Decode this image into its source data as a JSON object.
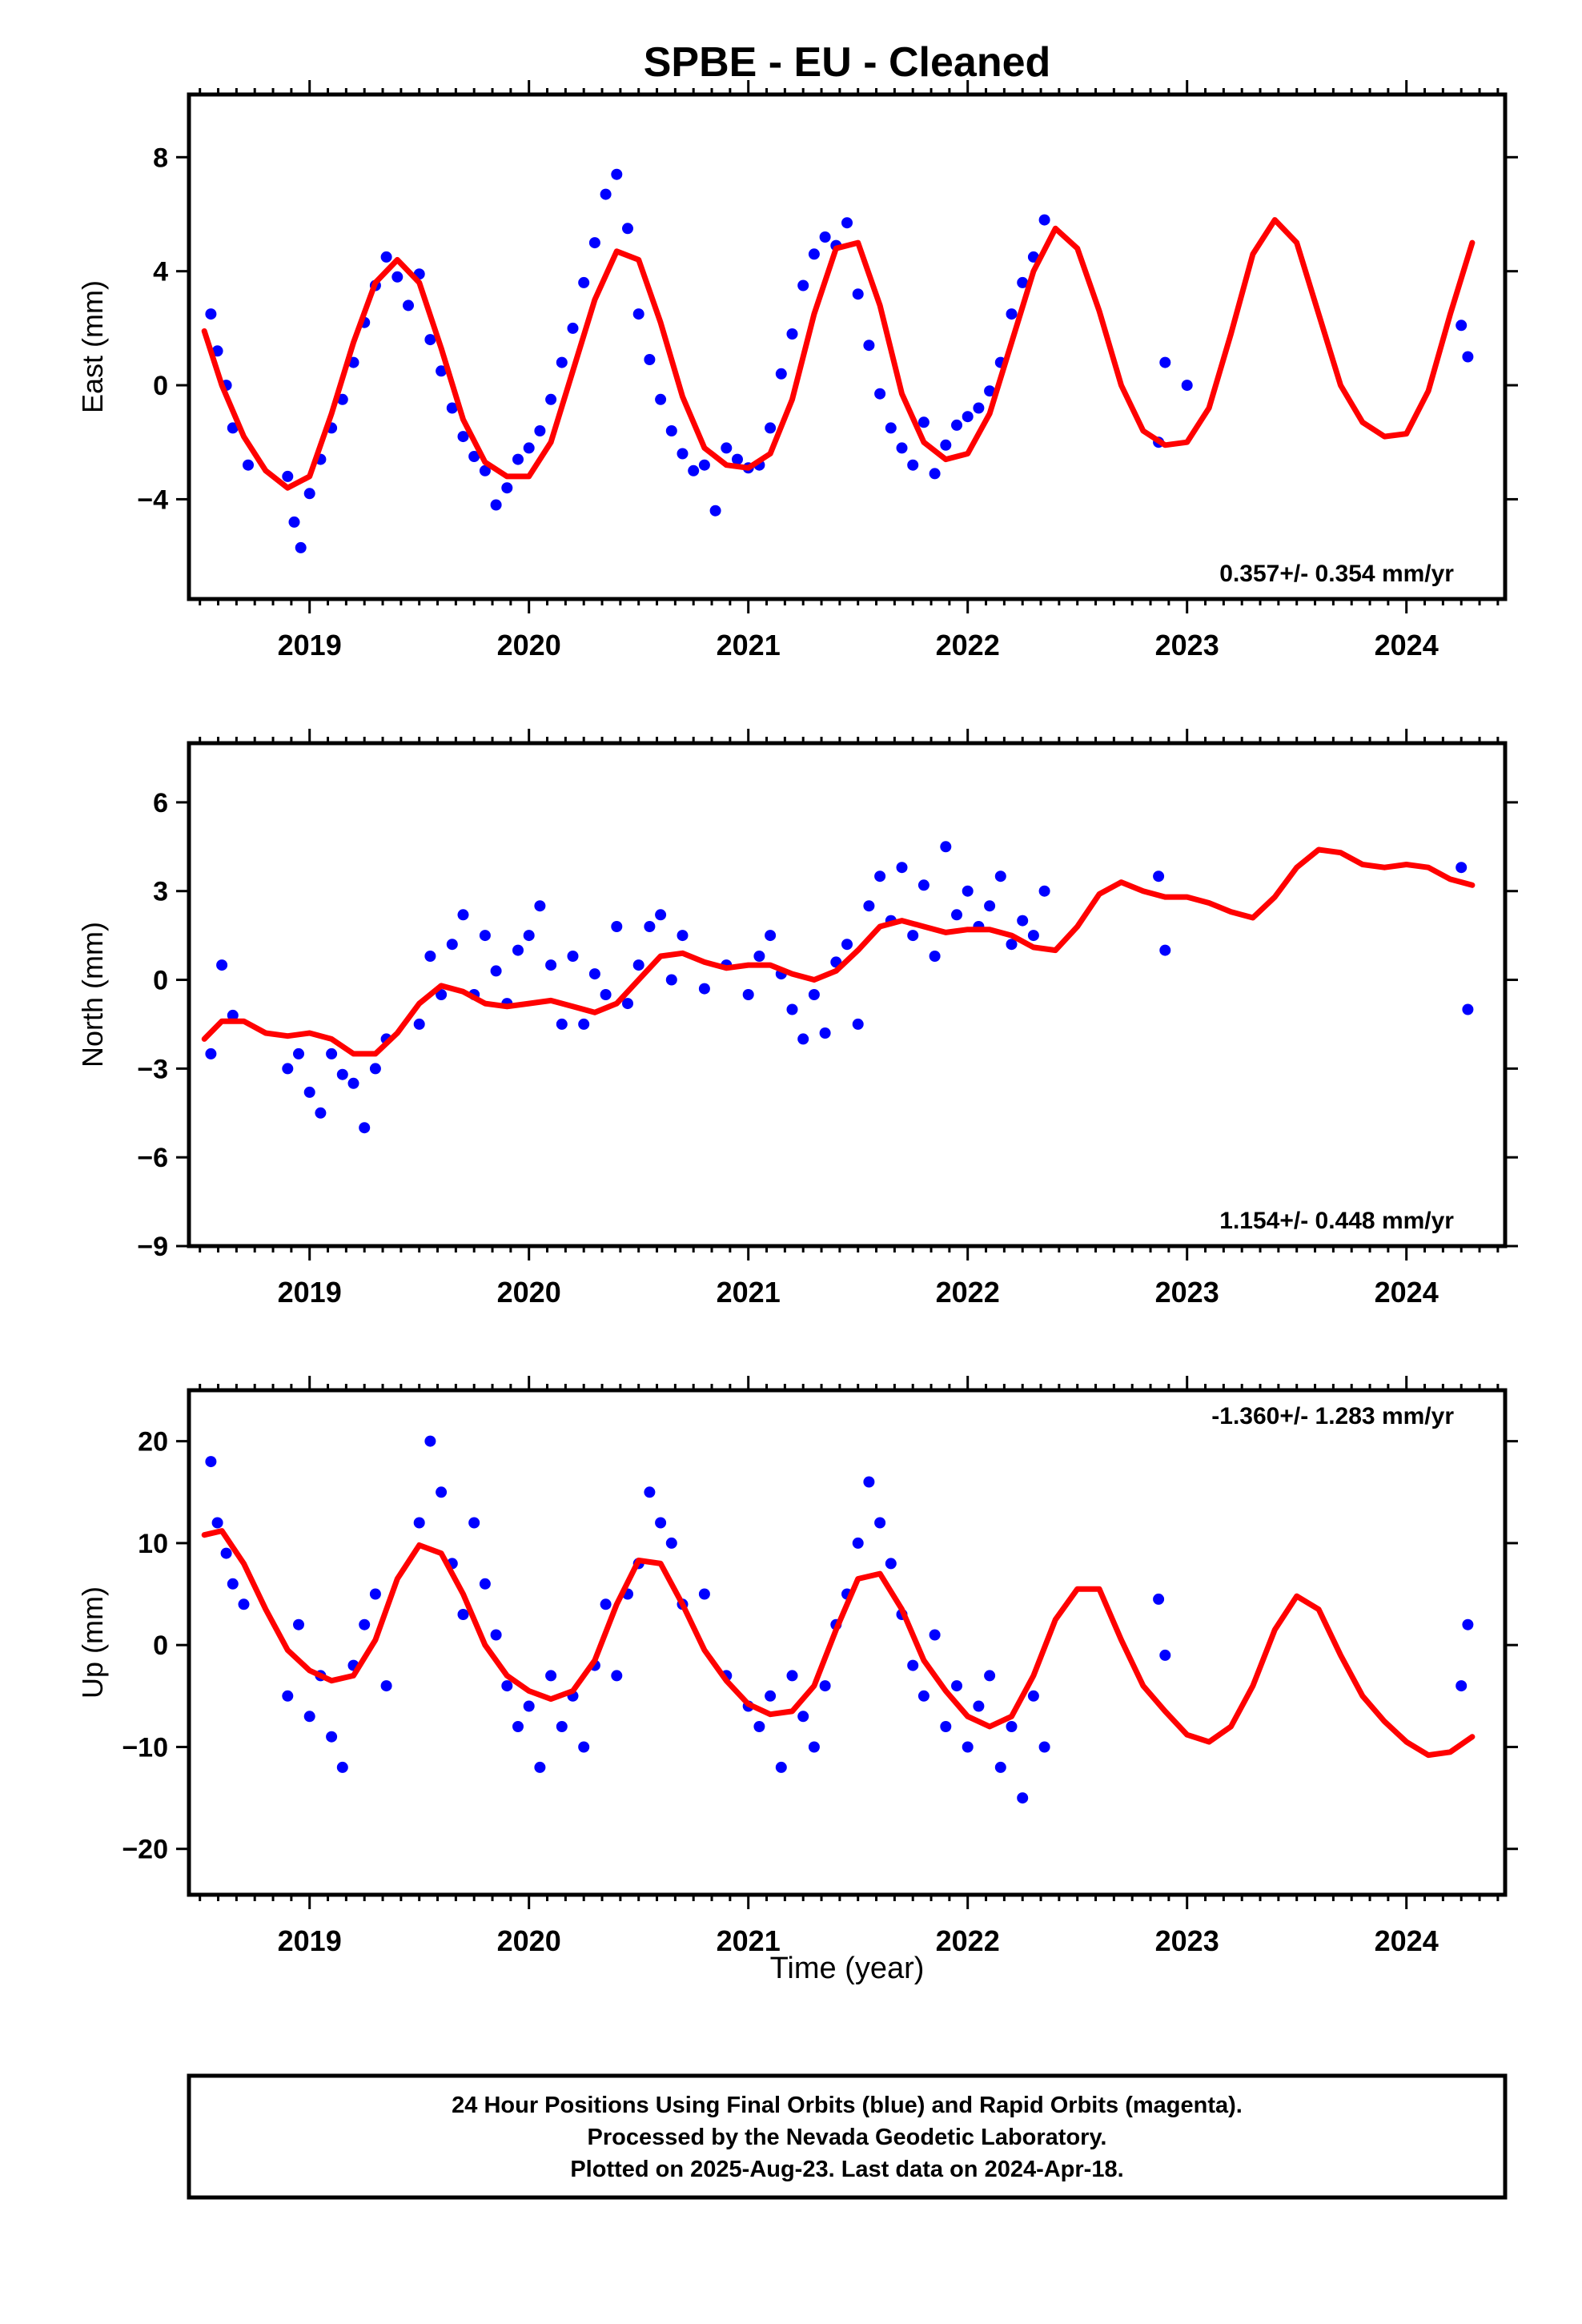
{
  "title": "SPBE  - EU - Cleaned",
  "footer_lines": [
    "24 Hour Positions Using Final Orbits (blue) and Rapid Orbits (magenta).",
    "Processed by the Nevada Geodetic Laboratory.",
    "Plotted on 2025-Aug-23. Last data on 2024-Apr-18."
  ],
  "colors": {
    "points": "#0000ff",
    "model": "#ff0000",
    "axes": "#000000"
  },
  "chart_data": [
    {
      "type": "scatter",
      "panel": "east",
      "ylabel": "East (mm)",
      "xlabel": "",
      "xlim": [
        2018.45,
        2024.45
      ],
      "ylim": [
        -7.5,
        10.2
      ],
      "yticks": [
        -4,
        0,
        4,
        8
      ],
      "xticks": [
        2019,
        2020,
        2021,
        2022,
        2023,
        2024
      ],
      "rate_label": "0.357+/- 0.354 mm/yr",
      "grid": false,
      "series": [
        {
          "kind": "daily_positions",
          "x": [
            2018.55,
            2018.58,
            2018.62,
            2018.65,
            2018.72,
            2018.9,
            2018.93,
            2018.96,
            2019.0,
            2019.05,
            2019.1,
            2019.15,
            2019.2,
            2019.25,
            2019.3,
            2019.35,
            2019.4,
            2019.45,
            2019.5,
            2019.55,
            2019.6,
            2019.65,
            2019.7,
            2019.75,
            2019.8,
            2019.85,
            2019.9,
            2019.95,
            2020.0,
            2020.05,
            2020.1,
            2020.15,
            2020.2,
            2020.25,
            2020.3,
            2020.35,
            2020.4,
            2020.45,
            2020.5,
            2020.55,
            2020.6,
            2020.65,
            2020.7,
            2020.75,
            2020.8,
            2020.85,
            2020.9,
            2020.95,
            2021.0,
            2021.05,
            2021.1,
            2021.15,
            2021.2,
            2021.25,
            2021.3,
            2021.35,
            2021.4,
            2021.45,
            2021.5,
            2021.55,
            2021.6,
            2021.65,
            2021.7,
            2021.75,
            2021.8,
            2021.85,
            2021.9,
            2021.95,
            2022.0,
            2022.05,
            2022.1,
            2022.15,
            2022.2,
            2022.25,
            2022.3,
            2022.35,
            2022.87,
            2022.9,
            2023.0,
            2024.25,
            2024.28
          ],
          "y": [
            2.5,
            1.2,
            0.0,
            -1.5,
            -2.8,
            -3.2,
            -4.8,
            -5.7,
            -3.8,
            -2.6,
            -1.5,
            -0.5,
            0.8,
            2.2,
            3.5,
            4.5,
            3.8,
            2.8,
            3.9,
            1.6,
            0.5,
            -0.8,
            -1.8,
            -2.5,
            -3.0,
            -4.2,
            -3.6,
            -2.6,
            -2.2,
            -1.6,
            -0.5,
            0.8,
            2.0,
            3.6,
            5.0,
            6.7,
            7.4,
            5.5,
            2.5,
            0.9,
            -0.5,
            -1.6,
            -2.4,
            -3.0,
            -2.8,
            -4.4,
            -2.2,
            -2.6,
            -2.9,
            -2.8,
            -1.5,
            0.4,
            1.8,
            3.5,
            4.6,
            5.2,
            4.9,
            5.7,
            3.2,
            1.4,
            -0.3,
            -1.5,
            -2.2,
            -2.8,
            -1.3,
            -3.1,
            -2.1,
            -1.4,
            -1.1,
            -0.8,
            -0.2,
            0.8,
            2.5,
            3.6,
            4.5,
            5.8,
            -2.0,
            0.8,
            0.0,
            2.1,
            1.0
          ]
        },
        {
          "kind": "model_fit",
          "x": [
            2018.52,
            2018.6,
            2018.7,
            2018.8,
            2018.9,
            2019.0,
            2019.1,
            2019.2,
            2019.3,
            2019.4,
            2019.5,
            2019.6,
            2019.7,
            2019.8,
            2019.9,
            2020.0,
            2020.1,
            2020.2,
            2020.3,
            2020.4,
            2020.5,
            2020.6,
            2020.7,
            2020.8,
            2020.9,
            2021.0,
            2021.1,
            2021.2,
            2021.3,
            2021.4,
            2021.5,
            2021.6,
            2021.7,
            2021.8,
            2021.9,
            2022.0,
            2022.1,
            2022.2,
            2022.3,
            2022.4,
            2022.5,
            2022.6,
            2022.7,
            2022.8,
            2022.9,
            2023.0,
            2023.1,
            2023.2,
            2023.3,
            2023.4,
            2023.5,
            2023.6,
            2023.7,
            2023.8,
            2023.9,
            2024.0,
            2024.1,
            2024.2,
            2024.3
          ],
          "y": [
            1.9,
            0.0,
            -1.8,
            -3.0,
            -3.6,
            -3.2,
            -1.0,
            1.5,
            3.6,
            4.4,
            3.6,
            1.3,
            -1.2,
            -2.7,
            -3.2,
            -3.2,
            -2.0,
            0.5,
            3.0,
            4.7,
            4.4,
            2.2,
            -0.4,
            -2.2,
            -2.8,
            -2.9,
            -2.4,
            -0.5,
            2.5,
            4.8,
            5.0,
            2.8,
            -0.3,
            -2.0,
            -2.6,
            -2.4,
            -1.0,
            1.5,
            4.0,
            5.5,
            4.8,
            2.6,
            0.0,
            -1.6,
            -2.1,
            -2.0,
            -0.8,
            1.8,
            4.6,
            5.8,
            5.0,
            2.5,
            0.0,
            -1.3,
            -1.8,
            -1.7,
            -0.2,
            2.5,
            5.0
          ]
        }
      ]
    },
    {
      "type": "scatter",
      "panel": "north",
      "ylabel": "North (mm)",
      "xlabel": "",
      "xlim": [
        2018.45,
        2024.45
      ],
      "ylim": [
        -9,
        8
      ],
      "yticks": [
        -9,
        -6,
        -3,
        0,
        3,
        6
      ],
      "xticks": [
        2019,
        2020,
        2021,
        2022,
        2023,
        2024
      ],
      "rate_label": "1.154+/- 0.448 mm/yr",
      "grid": false,
      "series": [
        {
          "kind": "daily_positions",
          "x": [
            2018.55,
            2018.6,
            2018.65,
            2018.9,
            2018.95,
            2019.0,
            2019.05,
            2019.1,
            2019.15,
            2019.2,
            2019.25,
            2019.3,
            2019.35,
            2019.5,
            2019.55,
            2019.6,
            2019.65,
            2019.7,
            2019.75,
            2019.8,
            2019.85,
            2019.9,
            2019.95,
            2020.0,
            2020.05,
            2020.1,
            2020.15,
            2020.2,
            2020.25,
            2020.3,
            2020.35,
            2020.4,
            2020.45,
            2020.5,
            2020.55,
            2020.6,
            2020.65,
            2020.7,
            2020.8,
            2020.9,
            2021.0,
            2021.05,
            2021.1,
            2021.15,
            2021.2,
            2021.25,
            2021.3,
            2021.35,
            2021.4,
            2021.45,
            2021.5,
            2021.55,
            2021.6,
            2021.65,
            2021.7,
            2021.75,
            2021.8,
            2021.85,
            2021.9,
            2021.95,
            2022.0,
            2022.05,
            2022.1,
            2022.15,
            2022.2,
            2022.25,
            2022.3,
            2022.35,
            2022.87,
            2022.9,
            2024.25,
            2024.28
          ],
          "y": [
            -2.5,
            0.5,
            -1.2,
            -3.0,
            -2.5,
            -3.8,
            -4.5,
            -2.5,
            -3.2,
            -3.5,
            -5.0,
            -3.0,
            -2.0,
            -1.5,
            0.8,
            -0.5,
            1.2,
            2.2,
            -0.5,
            1.5,
            0.3,
            -0.8,
            1.0,
            1.5,
            2.5,
            0.5,
            -1.5,
            0.8,
            -1.5,
            0.2,
            -0.5,
            1.8,
            -0.8,
            0.5,
            1.8,
            2.2,
            0.0,
            1.5,
            -0.3,
            0.5,
            -0.5,
            0.8,
            1.5,
            0.2,
            -1.0,
            -2.0,
            -0.5,
            -1.8,
            0.6,
            1.2,
            -1.5,
            2.5,
            3.5,
            2.0,
            3.8,
            1.5,
            3.2,
            0.8,
            4.5,
            2.2,
            3.0,
            1.8,
            2.5,
            3.5,
            1.2,
            2.0,
            1.5,
            3.0,
            3.5,
            1.0,
            3.8,
            -1.0
          ]
        },
        {
          "kind": "model_fit",
          "x": [
            2018.52,
            2018.6,
            2018.7,
            2018.8,
            2018.9,
            2019.0,
            2019.1,
            2019.2,
            2019.3,
            2019.4,
            2019.5,
            2019.6,
            2019.7,
            2019.8,
            2019.9,
            2020.0,
            2020.1,
            2020.2,
            2020.3,
            2020.4,
            2020.5,
            2020.6,
            2020.7,
            2020.8,
            2020.9,
            2021.0,
            2021.1,
            2021.2,
            2021.3,
            2021.4,
            2021.5,
            2021.6,
            2021.7,
            2021.8,
            2021.9,
            2022.0,
            2022.1,
            2022.2,
            2022.3,
            2022.4,
            2022.5,
            2022.6,
            2022.7,
            2022.8,
            2022.9,
            2023.0,
            2023.1,
            2023.2,
            2023.3,
            2023.4,
            2023.5,
            2023.6,
            2023.7,
            2023.8,
            2023.9,
            2024.0,
            2024.1,
            2024.2,
            2024.3
          ],
          "y": [
            -2.0,
            -1.4,
            -1.4,
            -1.8,
            -1.9,
            -1.8,
            -2.0,
            -2.5,
            -2.5,
            -1.8,
            -0.8,
            -0.2,
            -0.4,
            -0.8,
            -0.9,
            -0.8,
            -0.7,
            -0.9,
            -1.1,
            -0.8,
            0.0,
            0.8,
            0.9,
            0.6,
            0.4,
            0.5,
            0.5,
            0.2,
            0.0,
            0.3,
            1.0,
            1.8,
            2.0,
            1.8,
            1.6,
            1.7,
            1.7,
            1.5,
            1.1,
            1.0,
            1.8,
            2.9,
            3.3,
            3.0,
            2.8,
            2.8,
            2.6,
            2.3,
            2.1,
            2.8,
            3.8,
            4.4,
            4.3,
            3.9,
            3.8,
            3.9,
            3.8,
            3.4,
            3.2
          ]
        }
      ]
    },
    {
      "type": "scatter",
      "panel": "up",
      "ylabel": "Up (mm)",
      "xlabel": "Time (year)",
      "xlim": [
        2018.45,
        2024.45
      ],
      "ylim": [
        -24.5,
        25
      ],
      "yticks": [
        -20,
        -10,
        0,
        10,
        20
      ],
      "xticks": [
        2019,
        2020,
        2021,
        2022,
        2023,
        2024
      ],
      "rate_label": "-1.360+/- 1.283 mm/yr",
      "grid": false,
      "series": [
        {
          "kind": "daily_positions",
          "x": [
            2018.55,
            2018.58,
            2018.62,
            2018.65,
            2018.7,
            2018.9,
            2018.95,
            2019.0,
            2019.05,
            2019.1,
            2019.15,
            2019.2,
            2019.25,
            2019.3,
            2019.35,
            2019.5,
            2019.55,
            2019.6,
            2019.65,
            2019.7,
            2019.75,
            2019.8,
            2019.85,
            2019.9,
            2019.95,
            2020.0,
            2020.05,
            2020.1,
            2020.15,
            2020.2,
            2020.25,
            2020.3,
            2020.35,
            2020.4,
            2020.45,
            2020.5,
            2020.55,
            2020.6,
            2020.65,
            2020.7,
            2020.8,
            2020.9,
            2021.0,
            2021.05,
            2021.1,
            2021.15,
            2021.2,
            2021.25,
            2021.3,
            2021.35,
            2021.4,
            2021.45,
            2021.5,
            2021.55,
            2021.6,
            2021.65,
            2021.7,
            2021.75,
            2021.8,
            2021.85,
            2021.9,
            2021.95,
            2022.0,
            2022.05,
            2022.1,
            2022.15,
            2022.2,
            2022.25,
            2022.3,
            2022.35,
            2022.87,
            2022.9,
            2024.25,
            2024.28
          ],
          "y": [
            18.0,
            12.0,
            9.0,
            6.0,
            4.0,
            -5.0,
            2.0,
            -7.0,
            -3.0,
            -9.0,
            -12.0,
            -2.0,
            2.0,
            5.0,
            -4.0,
            12.0,
            20.0,
            15.0,
            8.0,
            3.0,
            12.0,
            6.0,
            1.0,
            -4.0,
            -8.0,
            -6.0,
            -12.0,
            -3.0,
            -8.0,
            -5.0,
            -10.0,
            -2.0,
            4.0,
            -3.0,
            5.0,
            8.0,
            15.0,
            12.0,
            10.0,
            4.0,
            5.0,
            -3.0,
            -6.0,
            -8.0,
            -5.0,
            -12.0,
            -3.0,
            -7.0,
            -10.0,
            -4.0,
            2.0,
            5.0,
            10.0,
            16.0,
            12.0,
            8.0,
            3.0,
            -2.0,
            -5.0,
            1.0,
            -8.0,
            -4.0,
            -10.0,
            -6.0,
            -3.0,
            -12.0,
            -8.0,
            -15.0,
            -5.0,
            -10.0,
            4.5,
            -1.0,
            -4.0,
            2.0
          ]
        },
        {
          "kind": "model_fit",
          "x": [
            2018.52,
            2018.6,
            2018.7,
            2018.8,
            2018.9,
            2019.0,
            2019.1,
            2019.2,
            2019.3,
            2019.4,
            2019.5,
            2019.6,
            2019.7,
            2019.8,
            2019.9,
            2020.0,
            2020.1,
            2020.2,
            2020.3,
            2020.4,
            2020.5,
            2020.6,
            2020.7,
            2020.8,
            2020.9,
            2021.0,
            2021.1,
            2021.2,
            2021.3,
            2021.4,
            2021.5,
            2021.6,
            2021.7,
            2021.8,
            2021.9,
            2022.0,
            2022.1,
            2022.2,
            2022.3,
            2022.4,
            2022.5,
            2022.6,
            2022.7,
            2022.8,
            2022.9,
            2023.0,
            2023.1,
            2023.2,
            2023.3,
            2023.4,
            2023.5,
            2023.6,
            2023.7,
            2023.8,
            2023.9,
            2024.0,
            2024.1,
            2024.2,
            2024.3
          ],
          "y": [
            10.8,
            11.2,
            8.0,
            3.5,
            -0.5,
            -2.5,
            -3.5,
            -3.0,
            0.5,
            6.5,
            9.8,
            9.0,
            5.0,
            0.0,
            -3.0,
            -4.5,
            -5.3,
            -4.5,
            -1.5,
            4.0,
            8.3,
            8.0,
            4.0,
            -0.5,
            -3.5,
            -5.8,
            -6.8,
            -6.5,
            -4.0,
            1.5,
            6.5,
            7.0,
            3.5,
            -1.5,
            -4.5,
            -7.0,
            -8.0,
            -7.0,
            -3.0,
            2.5,
            5.5,
            5.5,
            0.5,
            -4.0,
            -6.5,
            -8.8,
            -9.5,
            -8.0,
            -4.0,
            1.5,
            4.8,
            3.5,
            -1.0,
            -5.0,
            -7.5,
            -9.5,
            -10.8,
            -10.5,
            -9.0
          ]
        }
      ]
    }
  ]
}
